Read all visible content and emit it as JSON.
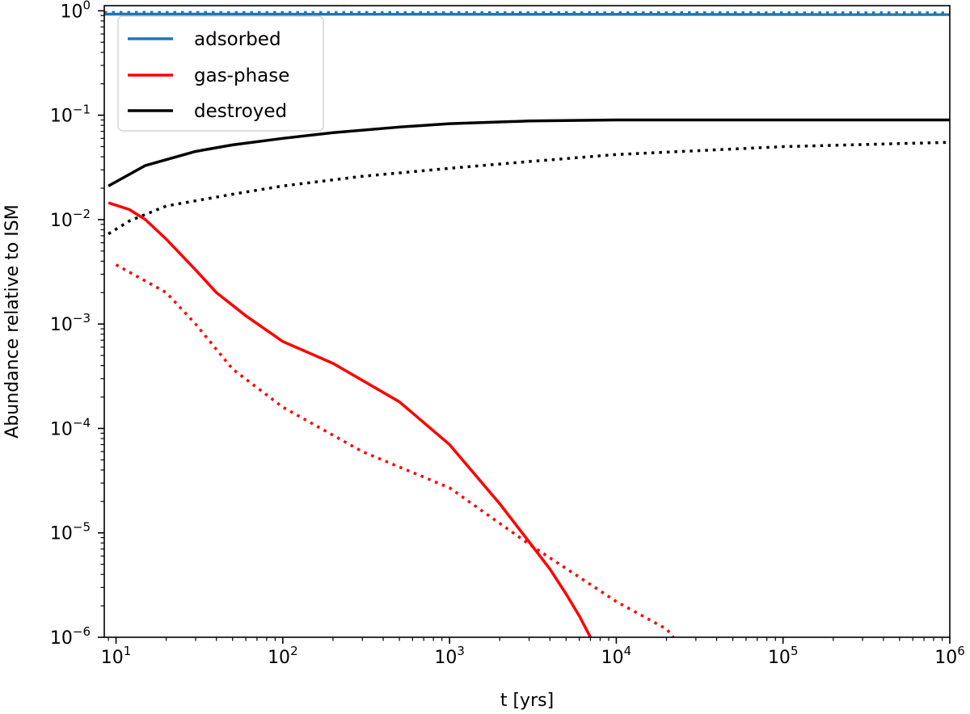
{
  "chart_data": {
    "type": "line",
    "title": "",
    "xlabel": "t [yrs]",
    "ylabel": "Abundance relative to ISM",
    "xscale": "log",
    "yscale": "log",
    "xlim": [
      8.5,
      1000000
    ],
    "ylim": [
      1e-06,
      1.12
    ],
    "x_ticks": [
      {
        "base": "10",
        "exp": "1",
        "value": 10
      },
      {
        "base": "10",
        "exp": "2",
        "value": 100
      },
      {
        "base": "10",
        "exp": "3",
        "value": 1000
      },
      {
        "base": "10",
        "exp": "4",
        "value": 10000
      },
      {
        "base": "10",
        "exp": "5",
        "value": 100000
      },
      {
        "base": "10",
        "exp": "6",
        "value": 1000000
      }
    ],
    "y_ticks": [
      {
        "base": "10",
        "exp": "0",
        "value": 1
      },
      {
        "base": "10",
        "exp": "−1",
        "value": 0.1
      },
      {
        "base": "10",
        "exp": "−2",
        "value": 0.01
      },
      {
        "base": "10",
        "exp": "−3",
        "value": 0.001
      },
      {
        "base": "10",
        "exp": "−4",
        "value": 0.0001
      },
      {
        "base": "10",
        "exp": "−5",
        "value": 1e-05
      },
      {
        "base": "10",
        "exp": "−6",
        "value": 1e-06
      }
    ],
    "legend": {
      "location": "upper left",
      "entries": [
        {
          "label": "adsorbed",
          "color": "#1f77b4"
        },
        {
          "label": "gas-phase",
          "color": "#ff0000"
        },
        {
          "label": "destroyed",
          "color": "#000000"
        }
      ]
    },
    "series": [
      {
        "name": "adsorbed",
        "style": "solid",
        "color": "#1f77b4",
        "x": [
          8.5,
          1000000
        ],
        "y": [
          0.93,
          0.92
        ]
      },
      {
        "name": "adsorbed",
        "style": "dotted",
        "color": "#1f77b4",
        "x": [
          8.5,
          1000000
        ],
        "y": [
          0.965,
          0.955
        ]
      },
      {
        "name": "destroyed",
        "style": "solid",
        "color": "#000000",
        "x": [
          9,
          15,
          30,
          50,
          100,
          200,
          500,
          1000,
          3000,
          10000,
          100000,
          1000000
        ],
        "y": [
          0.021,
          0.033,
          0.045,
          0.052,
          0.06,
          0.068,
          0.077,
          0.083,
          0.088,
          0.09,
          0.09,
          0.09
        ]
      },
      {
        "name": "destroyed",
        "style": "dotted",
        "color": "#000000",
        "x": [
          9,
          12,
          20,
          50,
          100,
          300,
          1000,
          3000,
          10000,
          100000,
          1000000
        ],
        "y": [
          0.0073,
          0.0097,
          0.0135,
          0.0175,
          0.021,
          0.026,
          0.031,
          0.036,
          0.042,
          0.05,
          0.055
        ]
      },
      {
        "name": "gas-phase",
        "style": "solid",
        "color": "#ff0000",
        "x": [
          9,
          12,
          15,
          20,
          30,
          40,
          60,
          100,
          200,
          500,
          1000,
          2000,
          3000,
          4000,
          5000,
          6000,
          7000
        ],
        "y": [
          0.0145,
          0.0125,
          0.01,
          0.0065,
          0.0033,
          0.002,
          0.0012,
          0.00068,
          0.00042,
          0.00018,
          7e-05,
          1.9e-05,
          8.2e-06,
          4.5e-06,
          2.6e-06,
          1.6e-06,
          1e-06
        ]
      },
      {
        "name": "gas-phase",
        "style": "dotted",
        "color": "#ff0000",
        "x": [
          10,
          20,
          30,
          50,
          100,
          300,
          1000,
          3000,
          10000,
          20000,
          22000
        ],
        "y": [
          0.0037,
          0.002,
          0.001,
          0.00037,
          0.00016,
          6e-05,
          2.7e-05,
          7.8e-06,
          2.2e-06,
          1.2e-06,
          1e-06
        ]
      }
    ]
  }
}
